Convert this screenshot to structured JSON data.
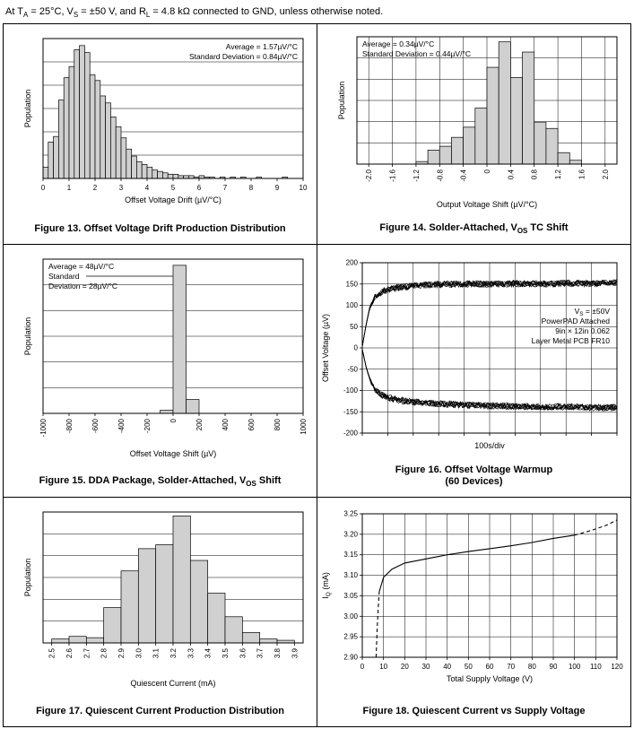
{
  "page": {
    "header": "At T_{A} = 25°C, V_{S} = ±50 V, and R_{L} = 4.8 kΩ connected to GND, unless otherwise noted."
  },
  "chart_data": [
    {
      "id": "fig13",
      "type": "bar",
      "caption": "Figure 13. Offset Voltage Drift Production Distribution",
      "xlabel": "Offset Voltage Drift (µV/°C)",
      "ylabel": "Population",
      "xlim": [
        0,
        10
      ],
      "xticks": [
        0,
        1,
        2,
        3,
        4,
        5,
        6,
        7,
        8,
        9,
        10
      ],
      "xtick_labels": [
        "0",
        "1",
        "2",
        "3",
        "4",
        "5",
        "6",
        "7",
        "8",
        "9",
        "10"
      ],
      "xtick_rotate": false,
      "xgrid": false,
      "ny": 6,
      "ylim": [
        0,
        100
      ],
      "bin_start": 0,
      "bin_width": 0.2,
      "values": [
        8,
        26,
        30,
        56,
        72,
        80,
        92,
        95,
        90,
        74,
        70,
        59,
        54,
        44,
        37,
        29,
        21,
        16,
        12,
        10,
        8,
        6,
        5,
        4,
        3,
        3,
        2,
        2,
        2,
        1,
        2,
        1,
        1,
        0,
        1,
        0,
        1,
        0,
        1,
        0,
        0,
        1,
        0,
        0,
        0,
        0,
        1,
        0,
        0,
        0
      ],
      "annotation": {
        "pos": "top-right",
        "lines": [
          "Average = 1.57µV/°C",
          "Standard Deviation = 0.84µV/°C"
        ]
      }
    },
    {
      "id": "fig14",
      "type": "bar",
      "caption": "Figure 14. Solder-Attached, V_{OS} TC Shift",
      "xlabel": "Output Voltage Shift (µV/°C)",
      "ylabel": "Population",
      "xlim": [
        -2.2,
        2.2
      ],
      "xticks": [
        -2.0,
        -1.6,
        -1.2,
        -0.8,
        -0.4,
        0,
        0.4,
        0.8,
        1.2,
        1.6,
        2.0
      ],
      "xtick_labels": [
        "-2.0",
        "-1.6",
        "-1.2",
        "-0.8",
        "-0.4",
        "0",
        "0.4",
        "0.8",
        "1.2",
        "1.6",
        "2.0"
      ],
      "xtick_rotate": true,
      "xgrid": true,
      "ny": 6,
      "ylim": [
        0,
        100
      ],
      "mt": 8,
      "bin_start": -2.0,
      "bin_width": 0.2,
      "values": [
        0,
        0,
        0,
        0,
        2,
        11,
        14,
        21,
        29,
        44,
        76,
        96,
        68,
        88,
        33,
        28,
        9,
        3,
        0,
        0
      ],
      "annotation": {
        "pos": "top-left",
        "lines": [
          "Average = 0.34µV/°C",
          "Standard Deviation = 0.44µV/°C"
        ]
      }
    },
    {
      "id": "fig15",
      "type": "bar",
      "caption": "Figure 15. DDA Package, Solder-Attached, V_{OS} Shift",
      "xlabel": "Offset Voltage Shift (µV)",
      "ylabel": "Population",
      "xlim": [
        -1000,
        1000
      ],
      "xticks": [
        -1000,
        -800,
        -600,
        -400,
        -200,
        0,
        200,
        400,
        600,
        800,
        1000
      ],
      "xtick_labels": [
        "-1000",
        "-800",
        "-600",
        "-400",
        "-200",
        "0",
        "200",
        "400",
        "600",
        "800",
        "1000"
      ],
      "xtick_rotate": true,
      "xgrid": false,
      "ny": 6,
      "ylim": [
        0,
        100
      ],
      "bin_start": -1000,
      "bin_width": 100,
      "values": [
        0,
        0,
        0,
        0,
        0,
        0,
        0,
        0,
        0,
        2,
        96,
        9,
        0,
        0,
        0,
        0,
        0,
        0,
        0,
        0
      ],
      "annotation": {
        "pos": "top-left",
        "leader": true,
        "lines": [
          "Average = 48µV/°C",
          "Standard",
          "Deviation = 28µV/°C"
        ]
      }
    },
    {
      "id": "fig16",
      "type": "line",
      "caption": "Figure 16. Offset Voltage Warmup",
      "caption2": "(60 Devices)",
      "xlabel": "100s/div",
      "ylabel": "Offset Voltage (µV)",
      "xlim": [
        0,
        10
      ],
      "xticks": [
        0,
        1,
        2,
        3,
        4,
        5,
        6,
        7,
        8,
        9,
        10
      ],
      "xtick_labels": [],
      "xgrid": true,
      "mt": 14,
      "mb": 34,
      "ylim": [
        -200,
        200
      ],
      "yticks": [
        -200,
        -150,
        -100,
        -50,
        0,
        50,
        100,
        150,
        200
      ],
      "ytick_labels": [
        "-200",
        "-150",
        "-100",
        "-50",
        "0",
        "50",
        "100",
        "150",
        "200"
      ],
      "series": [
        {
          "name": "upper-band",
          "band": true,
          "noise": 8,
          "x": [
            0,
            0.15,
            0.3,
            0.5,
            0.8,
            1.2,
            2,
            3,
            4,
            5,
            6,
            7,
            8,
            9,
            10
          ],
          "y": [
            3,
            55,
            95,
            120,
            133,
            140,
            146,
            149,
            150,
            150,
            151,
            150,
            152,
            151,
            154
          ]
        },
        {
          "name": "lower-band",
          "band": true,
          "noise": 8,
          "x": [
            0,
            0.15,
            0.3,
            0.5,
            0.8,
            1.2,
            2,
            3,
            4,
            5,
            6,
            7,
            8,
            9,
            10
          ],
          "y": [
            -3,
            -45,
            -75,
            -98,
            -112,
            -120,
            -127,
            -131,
            -134,
            -136,
            -137,
            -139,
            -138,
            -140,
            -140
          ]
        }
      ],
      "annotation": {
        "pos": "mid-right",
        "lines": [
          "V_{S} = ±50V",
          "PowerPAD Attached",
          "9in × 12in 0.062",
          "Layer Metal PCB FR10"
        ]
      }
    },
    {
      "id": "fig17",
      "type": "bar",
      "caption": "Figure 17. Quiescent Current Production Distribution",
      "xlabel": "Quiescent Current (mA)",
      "ylabel": "Population",
      "xlim": [
        2.45,
        3.95
      ],
      "xticks": [
        2.5,
        2.6,
        2.7,
        2.8,
        2.9,
        3.0,
        3.1,
        3.2,
        3.3,
        3.4,
        3.5,
        3.6,
        3.7,
        3.8,
        3.9
      ],
      "xtick_labels": [
        "2.5",
        "2.6",
        "2.7",
        "2.8",
        "2.9",
        "3.0",
        "3.1",
        "3.2",
        "3.3",
        "3.4",
        "3.5",
        "3.6",
        "3.7",
        "3.8",
        "3.9"
      ],
      "xtick_rotate": true,
      "xgrid": false,
      "ny": 6,
      "ylim": [
        0,
        100
      ],
      "bin_start": 2.5,
      "bin_width": 0.1,
      "values": [
        3,
        5,
        4,
        27,
        55,
        72,
        75,
        97,
        63,
        38,
        20,
        8,
        3,
        2
      ]
    },
    {
      "id": "fig18",
      "type": "line",
      "caption": "Figure 18. Quiescent Current vs Supply Voltage",
      "xlabel": "Total Supply Voltage (V)",
      "ylabel": "I_{Q} (mA)",
      "xlim": [
        0,
        120
      ],
      "xticks": [
        0,
        10,
        20,
        30,
        40,
        50,
        60,
        70,
        80,
        90,
        100,
        110,
        120
      ],
      "xtick_labels": [
        "0",
        "10",
        "20",
        "30",
        "40",
        "50",
        "60",
        "70",
        "80",
        "90",
        "100",
        "110",
        "120"
      ],
      "xgrid": true,
      "mt": 12,
      "mb": 40,
      "ylim": [
        2.9,
        3.25
      ],
      "yticks": [
        2.9,
        2.95,
        3.0,
        3.05,
        3.1,
        3.15,
        3.2,
        3.25
      ],
      "ytick_labels": [
        "2.90",
        "2.95",
        "3.00",
        "3.05",
        "3.10",
        "3.15",
        "3.20",
        "3.25"
      ],
      "series": [
        {
          "name": "IQ-dashed-low",
          "dash": true,
          "x": [
            6.5,
            7,
            7.5,
            8
          ],
          "y": [
            2.9,
            2.97,
            3.02,
            3.06
          ]
        },
        {
          "name": "IQ-solid",
          "dash": false,
          "x": [
            8,
            10,
            14,
            20,
            30,
            40,
            50,
            60,
            70,
            80,
            90,
            100
          ],
          "y": [
            3.06,
            3.095,
            3.115,
            3.13,
            3.14,
            3.15,
            3.158,
            3.165,
            3.172,
            3.18,
            3.19,
            3.198
          ]
        },
        {
          "name": "IQ-dashed-high",
          "dash": true,
          "x": [
            100,
            105,
            110,
            115,
            120
          ],
          "y": [
            3.198,
            3.205,
            3.213,
            3.222,
            3.235
          ]
        }
      ]
    }
  ]
}
